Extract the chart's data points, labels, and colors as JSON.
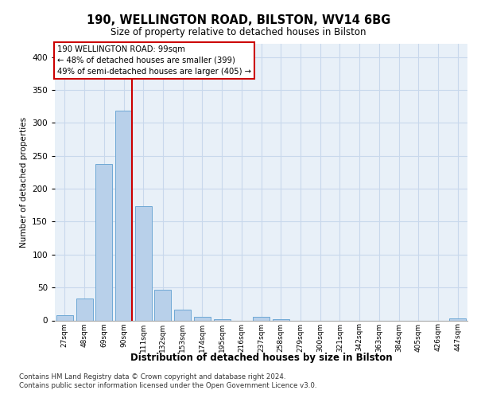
{
  "title1": "190, WELLINGTON ROAD, BILSTON, WV14 6BG",
  "title2": "Size of property relative to detached houses in Bilston",
  "xlabel": "Distribution of detached houses by size in Bilston",
  "ylabel": "Number of detached properties",
  "categories": [
    "27sqm",
    "48sqm",
    "69sqm",
    "90sqm",
    "111sqm",
    "132sqm",
    "153sqm",
    "174sqm",
    "195sqm",
    "216sqm",
    "237sqm",
    "258sqm",
    "279sqm",
    "300sqm",
    "321sqm",
    "342sqm",
    "363sqm",
    "384sqm",
    "405sqm",
    "426sqm",
    "447sqm"
  ],
  "values": [
    8,
    33,
    238,
    318,
    174,
    47,
    16,
    6,
    2,
    0,
    6,
    2,
    0,
    0,
    0,
    0,
    0,
    0,
    0,
    0,
    3
  ],
  "bar_color": "#b8d0ea",
  "bar_edge_color": "#6fa8d5",
  "highlight_bar_index": 3,
  "highlight_color": "#cc0000",
  "annotation_lines": [
    "190 WELLINGTON ROAD: 99sqm",
    "← 48% of detached houses are smaller (399)",
    "49% of semi-detached houses are larger (405) →"
  ],
  "annotation_box_color": "#ffffff",
  "annotation_box_edge": "#cc0000",
  "ylim": [
    0,
    420
  ],
  "yticks": [
    0,
    50,
    100,
    150,
    200,
    250,
    300,
    350,
    400
  ],
  "grid_color": "#c8d8ec",
  "background_color": "#e8f0f8",
  "footnote1": "Contains HM Land Registry data © Crown copyright and database right 2024.",
  "footnote2": "Contains public sector information licensed under the Open Government Licence v3.0."
}
